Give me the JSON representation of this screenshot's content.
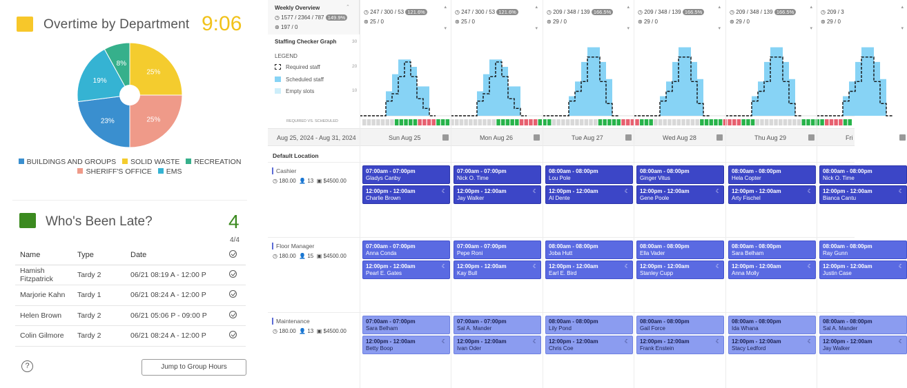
{
  "overtime": {
    "title": "Overtime by Department",
    "time": "9:06",
    "chart_data": {
      "type": "pie",
      "slices": [
        {
          "label": "SOLID WASTE",
          "value": 25,
          "color": "#f4cc2e"
        },
        {
          "label": "SHERIFF'S OFFICE",
          "value": 25,
          "color": "#ef9a89"
        },
        {
          "label": "BUILDINGS AND GROUPS",
          "value": 23,
          "color": "#3a8fcf"
        },
        {
          "label": "EMS",
          "value": 19,
          "color": "#35b3d3"
        },
        {
          "label": "RECREATION",
          "value": 8,
          "color": "#36b08b"
        }
      ]
    },
    "legend": [
      "BUILDINGS AND GROUPS",
      "SOLID WASTE",
      "RECREATION",
      "SHERIFF'S OFFICE",
      "EMS"
    ]
  },
  "late": {
    "title": "Who's Been Late?",
    "count": "4",
    "fraction": "4/4",
    "columns": [
      "Name",
      "Type",
      "Date"
    ],
    "rows": [
      {
        "name": "Hamish Fitzpatrick",
        "type": "Tardy 2",
        "date": "06/21 08:19 A - 12:00 P"
      },
      {
        "name": "Marjorie Kahn",
        "type": "Tardy 1",
        "date": "06/21 08:24 A - 12:00 P"
      },
      {
        "name": "Helen Brown",
        "type": "Tardy 2",
        "date": "06/21 05:06 P - 09:00 P"
      },
      {
        "name": "Colin Gilmore",
        "type": "Tardy 2",
        "date": "06/21 08:24 A - 12:00 P"
      }
    ],
    "help": "?",
    "jump_label": "Jump to Group Hours"
  },
  "schedule": {
    "weekly_title": "Weekly Overview",
    "weekly_stats": "1577 / 2364 / 787",
    "weekly_pct": "149.9%",
    "weekly_stats2": "197 / 0",
    "days": [
      {
        "stats": "247 / 300 / 53",
        "pct": "121.6%",
        "stats2": "25 / 0",
        "name": "Sun Aug 25"
      },
      {
        "stats": "247 / 300 / 53",
        "pct": "121.6%",
        "stats2": "25 / 0",
        "name": "Mon Aug 26"
      },
      {
        "stats": "209 / 348 / 139",
        "pct": "166.5%",
        "stats2": "29 / 0",
        "name": "Tue Aug 27"
      },
      {
        "stats": "209 / 348 / 139",
        "pct": "166.5%",
        "stats2": "29 / 0",
        "name": "Wed Aug 28"
      },
      {
        "stats": "209 / 348 / 139",
        "pct": "166.5%",
        "stats2": "29 / 0",
        "name": "Thu Aug 29"
      },
      {
        "stats": "209 / 3",
        "pct": "",
        "stats2": "29 / 0",
        "name": "Fri"
      }
    ],
    "graph_title": "Staffing Checker Graph",
    "legend_title": "LEGEND",
    "legend": [
      "Required staff",
      "Scheduled staff",
      "Empty slots"
    ],
    "axis": [
      "30",
      "20",
      "10"
    ],
    "rvs": "REQUIRED VS. SCHEDULED",
    "date_range": "Aug 25, 2024 - Aug 31, 2024",
    "location": "Default Location",
    "roles": [
      {
        "name": "Cashier",
        "hours": "180.00",
        "staff": "13",
        "cost": "$4500.00",
        "shifts": [
          [
            "07:00am - 07:00pm",
            "Gladys Canby",
            "12:00pm - 12:00am",
            "Charlie Brown"
          ],
          [
            "07:00am - 07:00pm",
            "Nick O. Time",
            "12:00pm - 12:00am",
            "Jay Walker"
          ],
          [
            "08:00am - 08:00pm",
            "Lou Pole",
            "12:00pm - 12:00am",
            "Al Dente"
          ],
          [
            "08:00am - 08:00pm",
            "Ginger Vitus",
            "12:00pm - 12:00am",
            "Gene Poole"
          ],
          [
            "08:00am - 08:00pm",
            "Hela Copter",
            "12:00pm - 12:00am",
            "Arty Fischel"
          ],
          [
            "08:00am - 08:00pm",
            "Nick O. Time",
            "12:00pm - 12:00am",
            "Bianca Cantu"
          ]
        ]
      },
      {
        "name": "Floor Manager",
        "hours": "180.00",
        "staff": "15",
        "cost": "$4500.00",
        "shifts": [
          [
            "07:00am - 07:00pm",
            "Anna Conda",
            "12:00pm - 12:00am",
            "Pearl E. Gates"
          ],
          [
            "07:00am - 07:00pm",
            "Pepe Roni",
            "12:00pm - 12:00am",
            "Kay Bull"
          ],
          [
            "08:00am - 08:00pm",
            "Joba Hutt",
            "12:00pm - 12:00am",
            "Earl E. Bird"
          ],
          [
            "08:00am - 08:00pm",
            "Ella Vader",
            "12:00pm - 12:00am",
            "Stanley Cupp"
          ],
          [
            "08:00am - 08:00pm",
            "Sara Belham",
            "12:00pm - 12:00am",
            "Anna Molly"
          ],
          [
            "08:00am - 08:00pm",
            "Ray Gunn",
            "12:00pm - 12:00am",
            "Justin Case"
          ]
        ]
      },
      {
        "name": "Maintenance",
        "hours": "180.00",
        "staff": "13",
        "cost": "$4500.00",
        "shifts": [
          [
            "07:00am - 07:00pm",
            "Sara Belham",
            "12:00pm - 12:00am",
            "Betty Boop"
          ],
          [
            "07:00am - 07:00pm",
            "Sal A. Mander",
            "12:00pm - 12:00am",
            "Ivan Oder"
          ],
          [
            "08:00am - 08:00pm",
            "Lily Pond",
            "12:00pm - 12:00am",
            "Chris Coe"
          ],
          [
            "08:00am - 08:00pm",
            "Gail Force",
            "12:00pm - 12:00am",
            "Frank Enstein"
          ],
          [
            "08:00am - 08:00pm",
            "Ida Whana",
            "12:00pm - 12:00am",
            "Stacy Ledford"
          ],
          [
            "08:00am - 08:00pm",
            "Sal A. Mander",
            "12:00pm - 12:00am",
            "Jay Walker"
          ]
        ]
      }
    ]
  }
}
